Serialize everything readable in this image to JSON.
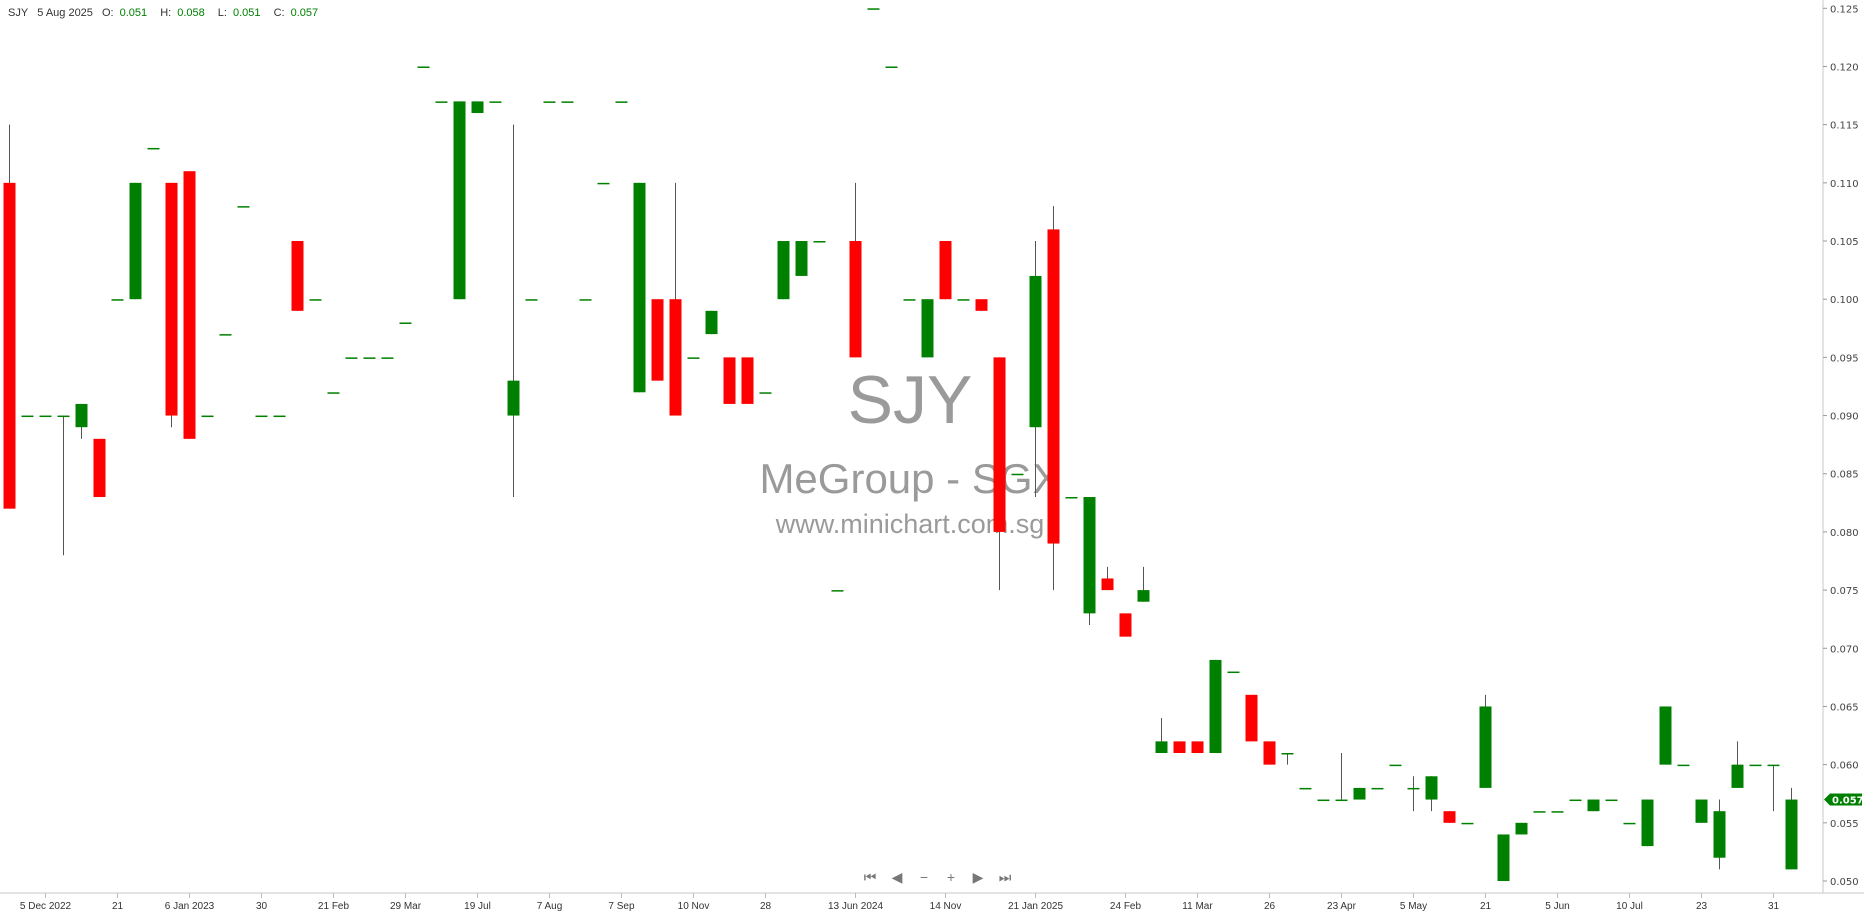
{
  "header": {
    "symbol": "SJY",
    "date": "5 Aug 2025",
    "o_label": "O:",
    "o": "0.051",
    "h_label": "H:",
    "h": "0.058",
    "l_label": "L:",
    "l": "0.051",
    "c_label": "C:",
    "c": "0.057"
  },
  "watermark": {
    "ticker": "SJY",
    "name": "MeGroup - SGX",
    "site": "www.minichart.com.sg"
  },
  "nav": {
    "first": "⏮",
    "prev": "◀",
    "zoom_out": "−",
    "zoom_in": "+",
    "next": "▶",
    "last": "⏭"
  },
  "colors": {
    "up": "#008000",
    "down": "#ff0000",
    "wick": "#555555",
    "axis": "#c8c8c8",
    "last_price_tag": "#008000"
  },
  "chart_data": {
    "type": "candlestick",
    "ylim": [
      0.05,
      0.125
    ],
    "y_ticks": [
      "0.125",
      "0.120",
      "0.115",
      "0.110",
      "0.105",
      "0.100",
      "0.095",
      "0.090",
      "0.085",
      "0.080",
      "0.075",
      "0.070",
      "0.065",
      "0.060",
      "0.055",
      "0.050"
    ],
    "last_price": "0.057",
    "x_ticks": [
      {
        "index": 2,
        "label": "5 Dec 2022"
      },
      {
        "index": 6,
        "label": "21"
      },
      {
        "index": 10,
        "label": "6 Jan 2023"
      },
      {
        "index": 14,
        "label": "30"
      },
      {
        "index": 18,
        "label": "21 Feb"
      },
      {
        "index": 22,
        "label": "29 Mar"
      },
      {
        "index": 26,
        "label": "19 Jul"
      },
      {
        "index": 30,
        "label": "7 Aug"
      },
      {
        "index": 34,
        "label": "7 Sep"
      },
      {
        "index": 38,
        "label": "10 Nov"
      },
      {
        "index": 42,
        "label": "28"
      },
      {
        "index": 47,
        "label": "13 Jun 2024"
      },
      {
        "index": 52,
        "label": "14 Nov"
      },
      {
        "index": 57,
        "label": "21 Jan 2025"
      },
      {
        "index": 62,
        "label": "24 Feb"
      },
      {
        "index": 66,
        "label": "11 Mar"
      },
      {
        "index": 70,
        "label": "26"
      },
      {
        "index": 74,
        "label": "23 Apr"
      },
      {
        "index": 78,
        "label": "5 May"
      },
      {
        "index": 82,
        "label": "21"
      },
      {
        "index": 86,
        "label": "5 Jun"
      },
      {
        "index": 90,
        "label": "10 Jul"
      },
      {
        "index": 94,
        "label": "23"
      },
      {
        "index": 98,
        "label": "31"
      }
    ],
    "candles": [
      [
        0.11,
        0.115,
        0.082,
        0.082
      ],
      [
        0.09,
        0.09,
        0.09,
        0.09
      ],
      [
        0.09,
        0.09,
        0.09,
        0.09
      ],
      [
        0.09,
        0.09,
        0.078,
        0.09
      ],
      [
        0.089,
        0.091,
        0.088,
        0.091
      ],
      [
        0.088,
        0.088,
        0.083,
        0.083
      ],
      [
        0.1,
        0.1,
        0.1,
        0.1
      ],
      [
        0.1,
        0.11,
        0.1,
        0.11
      ],
      [
        0.113,
        0.113,
        0.113,
        0.113
      ],
      [
        0.11,
        0.11,
        0.089,
        0.09
      ],
      [
        0.111,
        0.111,
        0.088,
        0.088
      ],
      [
        0.09,
        0.09,
        0.09,
        0.09
      ],
      [
        0.097,
        0.097,
        0.097,
        0.097
      ],
      [
        0.108,
        0.108,
        0.108,
        0.108
      ],
      [
        0.09,
        0.09,
        0.09,
        0.09
      ],
      [
        0.09,
        0.09,
        0.09,
        0.09
      ],
      [
        0.105,
        0.105,
        0.099,
        0.099
      ],
      [
        0.1,
        0.1,
        0.1,
        0.1
      ],
      [
        0.092,
        0.092,
        0.092,
        0.092
      ],
      [
        0.095,
        0.095,
        0.095,
        0.095
      ],
      [
        0.095,
        0.095,
        0.095,
        0.095
      ],
      [
        0.095,
        0.095,
        0.095,
        0.095
      ],
      [
        0.098,
        0.098,
        0.098,
        0.098
      ],
      [
        0.12,
        0.12,
        0.12,
        0.12
      ],
      [
        0.117,
        0.117,
        0.117,
        0.117
      ],
      [
        0.1,
        0.117,
        0.1,
        0.117
      ],
      [
        0.116,
        0.117,
        0.116,
        0.117
      ],
      [
        0.117,
        0.117,
        0.117,
        0.117
      ],
      [
        0.09,
        0.115,
        0.083,
        0.093
      ],
      [
        0.1,
        0.1,
        0.1,
        0.1
      ],
      [
        0.117,
        0.117,
        0.117,
        0.117
      ],
      [
        0.117,
        0.117,
        0.117,
        0.117
      ],
      [
        0.1,
        0.1,
        0.1,
        0.1
      ],
      [
        0.11,
        0.11,
        0.11,
        0.11
      ],
      [
        0.117,
        0.117,
        0.117,
        0.117
      ],
      [
        0.092,
        0.11,
        0.092,
        0.11
      ],
      [
        0.1,
        0.1,
        0.093,
        0.093
      ],
      [
        0.1,
        0.11,
        0.09,
        0.09
      ],
      [
        0.095,
        0.095,
        0.095,
        0.095
      ],
      [
        0.097,
        0.099,
        0.097,
        0.099
      ],
      [
        0.095,
        0.095,
        0.091,
        0.091
      ],
      [
        0.095,
        0.095,
        0.091,
        0.091
      ],
      [
        0.092,
        0.092,
        0.092,
        0.092
      ],
      [
        0.1,
        0.105,
        0.1,
        0.105
      ],
      [
        0.102,
        0.105,
        0.102,
        0.105
      ],
      [
        0.105,
        0.105,
        0.105,
        0.105
      ],
      [
        0.075,
        0.075,
        0.075,
        0.075
      ],
      [
        0.105,
        0.11,
        0.095,
        0.095
      ],
      [
        0.125,
        0.125,
        0.125,
        0.125
      ],
      [
        0.12,
        0.12,
        0.12,
        0.12
      ],
      [
        0.1,
        0.1,
        0.1,
        0.1
      ],
      [
        0.095,
        0.1,
        0.095,
        0.1
      ],
      [
        0.105,
        0.105,
        0.1,
        0.1
      ],
      [
        0.1,
        0.1,
        0.1,
        0.1
      ],
      [
        0.1,
        0.1,
        0.099,
        0.099
      ],
      [
        0.095,
        0.095,
        0.075,
        0.08
      ],
      [
        0.085,
        0.085,
        0.085,
        0.085
      ],
      [
        0.089,
        0.105,
        0.083,
        0.102
      ],
      [
        0.106,
        0.108,
        0.075,
        0.079
      ],
      [
        0.083,
        0.083,
        0.083,
        0.083
      ],
      [
        0.073,
        0.083,
        0.072,
        0.083
      ],
      [
        0.076,
        0.077,
        0.075,
        0.075
      ],
      [
        0.073,
        0.073,
        0.071,
        0.071
      ],
      [
        0.074,
        0.077,
        0.074,
        0.075
      ],
      [
        0.061,
        0.064,
        0.061,
        0.062
      ],
      [
        0.062,
        0.062,
        0.061,
        0.061
      ],
      [
        0.062,
        0.062,
        0.061,
        0.061
      ],
      [
        0.061,
        0.069,
        0.061,
        0.069
      ],
      [
        0.068,
        0.068,
        0.068,
        0.068
      ],
      [
        0.066,
        0.066,
        0.062,
        0.062
      ],
      [
        0.062,
        0.062,
        0.06,
        0.06
      ],
      [
        0.061,
        0.061,
        0.06,
        0.061
      ],
      [
        0.058,
        0.058,
        0.058,
        0.058
      ],
      [
        0.057,
        0.057,
        0.057,
        0.057
      ],
      [
        0.057,
        0.061,
        0.057,
        0.057
      ],
      [
        0.057,
        0.058,
        0.057,
        0.058
      ],
      [
        0.058,
        0.058,
        0.058,
        0.058
      ],
      [
        0.06,
        0.06,
        0.06,
        0.06
      ],
      [
        0.058,
        0.059,
        0.056,
        0.058
      ],
      [
        0.057,
        0.059,
        0.056,
        0.059
      ],
      [
        0.056,
        0.056,
        0.055,
        0.055
      ],
      [
        0.055,
        0.055,
        0.055,
        0.055
      ],
      [
        0.058,
        0.066,
        0.058,
        0.065
      ],
      [
        0.05,
        0.054,
        0.05,
        0.054
      ],
      [
        0.054,
        0.055,
        0.054,
        0.055
      ],
      [
        0.056,
        0.056,
        0.056,
        0.056
      ],
      [
        0.056,
        0.056,
        0.056,
        0.056
      ],
      [
        0.057,
        0.057,
        0.057,
        0.057
      ],
      [
        0.056,
        0.057,
        0.056,
        0.057
      ],
      [
        0.057,
        0.057,
        0.057,
        0.057
      ],
      [
        0.055,
        0.055,
        0.055,
        0.055
      ],
      [
        0.053,
        0.057,
        0.053,
        0.057
      ],
      [
        0.06,
        0.065,
        0.06,
        0.065
      ],
      [
        0.06,
        0.06,
        0.06,
        0.06
      ],
      [
        0.055,
        0.057,
        0.055,
        0.057
      ],
      [
        0.052,
        0.057,
        0.051,
        0.056
      ],
      [
        0.058,
        0.062,
        0.058,
        0.06
      ],
      [
        0.06,
        0.06,
        0.06,
        0.06
      ],
      [
        0.06,
        0.06,
        0.056,
        0.06
      ],
      [
        0.051,
        0.058,
        0.051,
        0.057
      ]
    ],
    "candle_fields": [
      "open",
      "high",
      "low",
      "close"
    ]
  }
}
